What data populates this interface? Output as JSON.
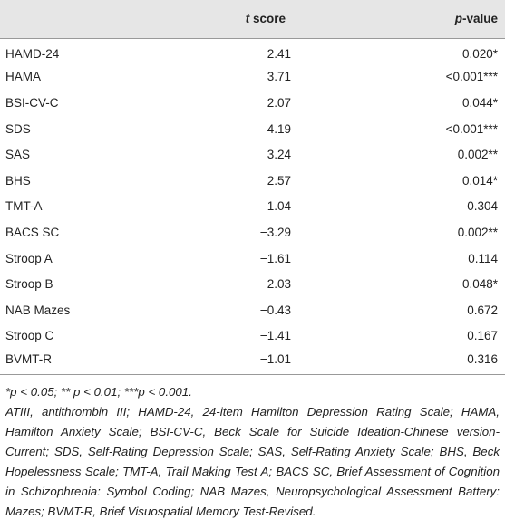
{
  "table": {
    "header": [
      {
        "italic": "t",
        "rest": "score"
      },
      {
        "italic": "p",
        "rest": "-value"
      }
    ],
    "rows": [
      [
        "HAMD-24",
        "2.41",
        "0.020*"
      ],
      [
        "HAMA",
        "3.71",
        "<0.001***"
      ],
      [
        "BSI-CV-C",
        "2.07",
        "0.044*"
      ],
      [
        "SDS",
        "4.19",
        "<0.001***"
      ],
      [
        "SAS",
        "3.24",
        "0.002**"
      ],
      [
        "BHS",
        "2.57",
        "0.014*"
      ],
      [
        "TMT-A",
        "1.04",
        "0.304"
      ],
      [
        "BACS SC",
        "−3.29",
        "0.002**"
      ],
      [
        "Stroop A",
        "−1.61",
        "0.114"
      ],
      [
        "Stroop B",
        "−2.03",
        "0.048*"
      ],
      [
        "NAB Mazes",
        "−0.43",
        "0.672"
      ],
      [
        "Stroop C",
        "−1.41",
        "0.167"
      ],
      [
        "BVMT-R",
        "−1.01",
        "0.316"
      ]
    ]
  },
  "notes": {
    "significance": "*p < 0.05; ** p < 0.01; ***p < 0.001.",
    "abbreviations": "ATIII, antithrombin III; HAMD-24, 24-item Hamilton Depression Rating Scale; HAMA, Hamilton Anxiety Scale; BSI-CV-C, Beck Scale for Suicide Ideation-Chinese version-Current; SDS, Self-Rating Depression Scale; SAS, Self-Rating Anxiety Scale; BHS, Beck Hopelessness Scale; TMT-A, Trail Making Test A; BACS SC, Brief Assessment of Cognition in Schizophrenia: Symbol Coding; NAB Mazes, Neuropsychological Assessment Battery: Mazes; BVMT-R, Brief Visuospatial Memory Test-Revised."
  }
}
